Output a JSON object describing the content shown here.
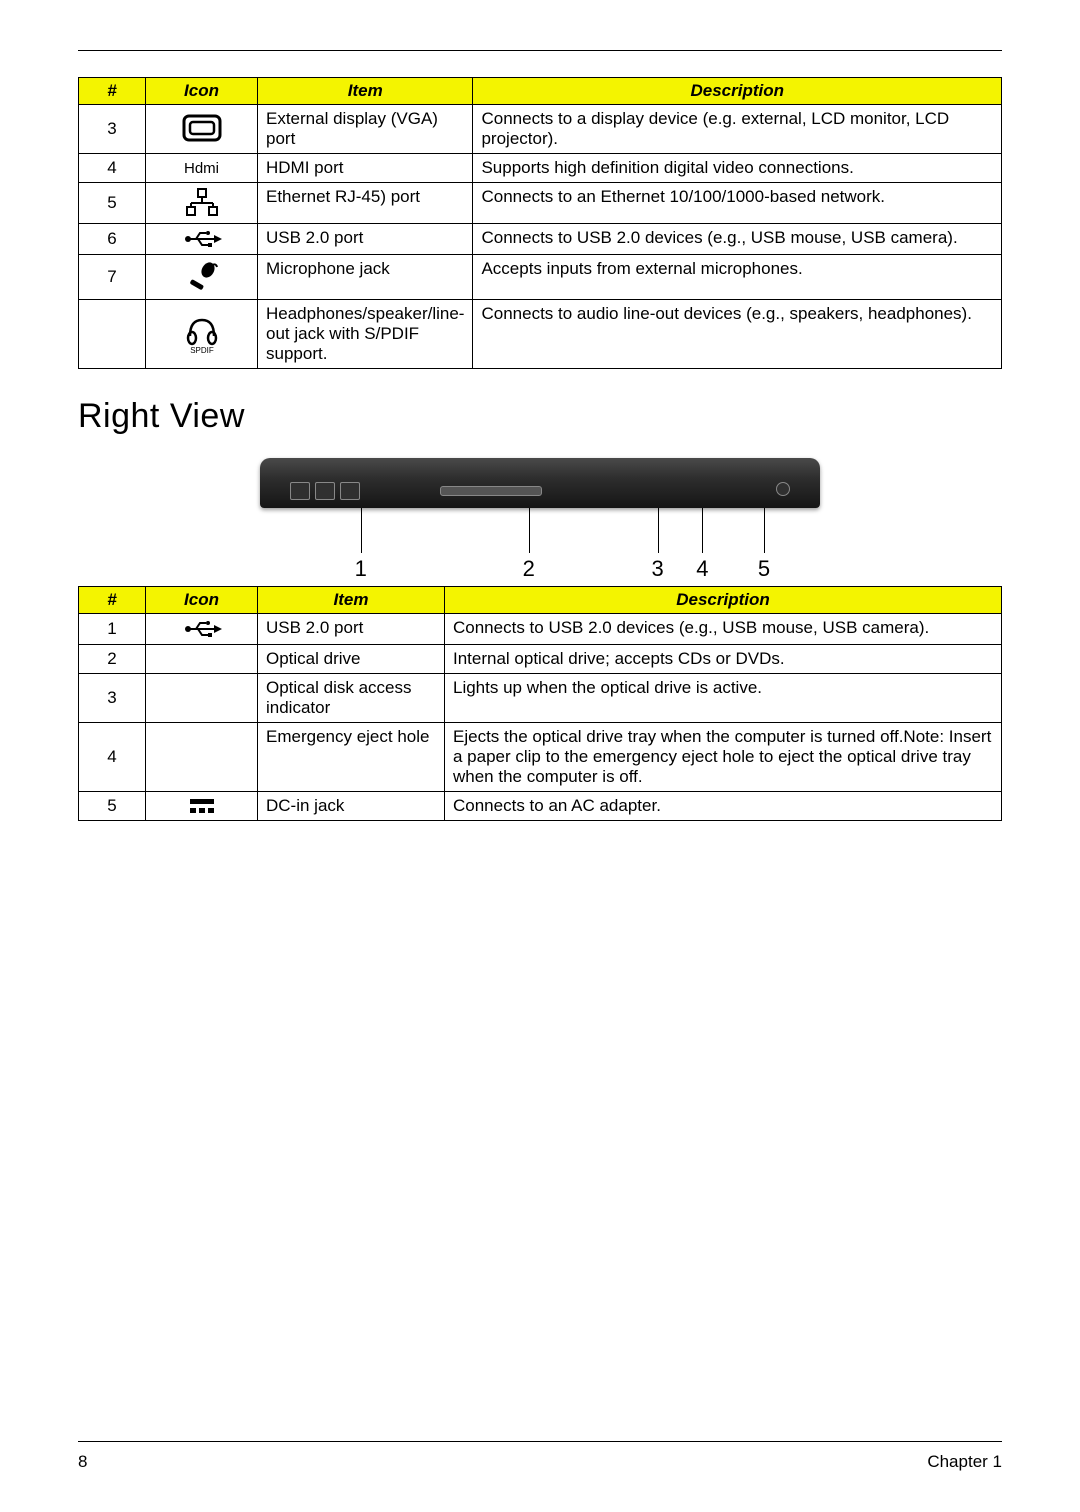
{
  "colors": {
    "header_bg": "#f4f400",
    "border": "#000000",
    "text": "#000000",
    "page_bg": "#ffffff"
  },
  "table1": {
    "columns": [
      "#",
      "Icon",
      "Item",
      "Description"
    ],
    "rows": [
      {
        "num": "3",
        "icon": "monitor",
        "item": "External display (VGA) port",
        "desc": "Connects to a display device (e.g. external, LCD monitor, LCD projector)."
      },
      {
        "num": "4",
        "icon_text": "Hdmi",
        "item": "HDMI port",
        "desc": "Supports high definition digital video connections."
      },
      {
        "num": "5",
        "icon": "ethernet",
        "item": "Ethernet RJ-45) port",
        "desc": "Connects to an Ethernet 10/100/1000-based network."
      },
      {
        "num": "6",
        "icon": "usb",
        "item": "USB 2.0 port",
        "desc": "Connects to USB 2.0 devices (e.g., USB mouse, USB camera)."
      },
      {
        "num": "7",
        "icon": "mic",
        "item": "Microphone jack",
        "desc": "Accepts inputs from external microphones."
      },
      {
        "num": "",
        "icon": "headphones",
        "item": "Headphones/speaker/line-out jack with S/PDIF support.",
        "desc": "Connects to audio line-out devices (e.g., speakers, headphones)."
      }
    ]
  },
  "section_title": "Right View",
  "figure": {
    "labels": [
      "1",
      "2",
      "3",
      "4",
      "5"
    ],
    "positions_pct": [
      18,
      48,
      71,
      79,
      90
    ]
  },
  "table2": {
    "columns": [
      "#",
      "Icon",
      "Item",
      "Description"
    ],
    "rows": [
      {
        "num": "1",
        "icon": "usb",
        "item": "USB 2.0 port",
        "desc": "Connects to USB 2.0 devices (e.g., USB mouse, USB camera)."
      },
      {
        "num": "2",
        "icon": "",
        "item": "Optical drive",
        "desc": "Internal optical drive; accepts CDs or DVDs."
      },
      {
        "num": "3",
        "icon": "",
        "item": "Optical disk access indicator",
        "desc": "Lights up when the optical drive is active."
      },
      {
        "num": "4",
        "icon": "",
        "item": "Emergency eject hole",
        "desc": "Ejects the optical drive tray when the computer is turned off.Note: Insert a paper clip to the emergency eject hole to eject the optical drive tray when the computer is off."
      },
      {
        "num": "5",
        "icon": "dcin",
        "item": "DC-in jack",
        "desc": "Connects to an AC adapter."
      }
    ]
  },
  "footer": {
    "page": "8",
    "chapter": "Chapter 1"
  }
}
